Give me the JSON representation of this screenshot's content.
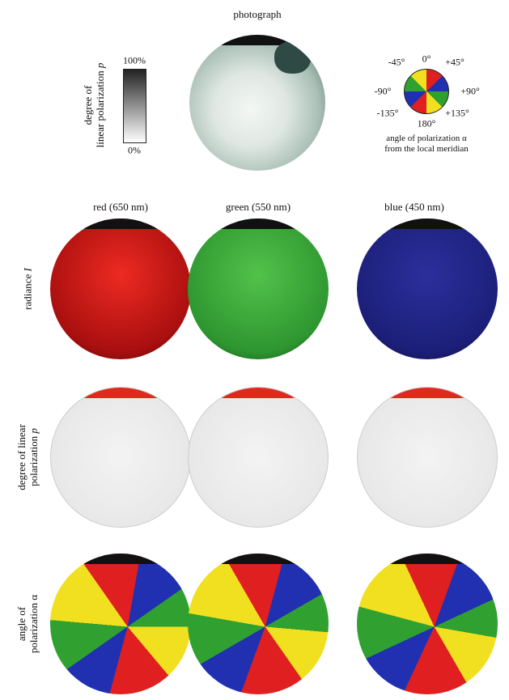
{
  "photograph": {
    "title": "photograph"
  },
  "p_scale": {
    "label": [
      "degree of",
      "linear polarization"
    ],
    "symbol": "p",
    "max": "100%",
    "min": "0%"
  },
  "aop_wheel": {
    "ticks": [
      "0°",
      "+45°",
      "+90°",
      "+135°",
      "180°",
      "-135°",
      "-90°",
      "-45°"
    ],
    "caption": [
      "angle of  polarization α",
      "from the local meridian"
    ]
  },
  "columns": [
    "red (650 nm)",
    "green (550 nm)",
    "blue (450 nm)"
  ],
  "rows": [
    {
      "label": [
        "radiance"
      ],
      "symbol": "I"
    },
    {
      "label": [
        "degree of linear",
        "polarization"
      ],
      "symbol": "p"
    },
    {
      "label": [
        "angle of",
        "polarization α"
      ]
    }
  ]
}
